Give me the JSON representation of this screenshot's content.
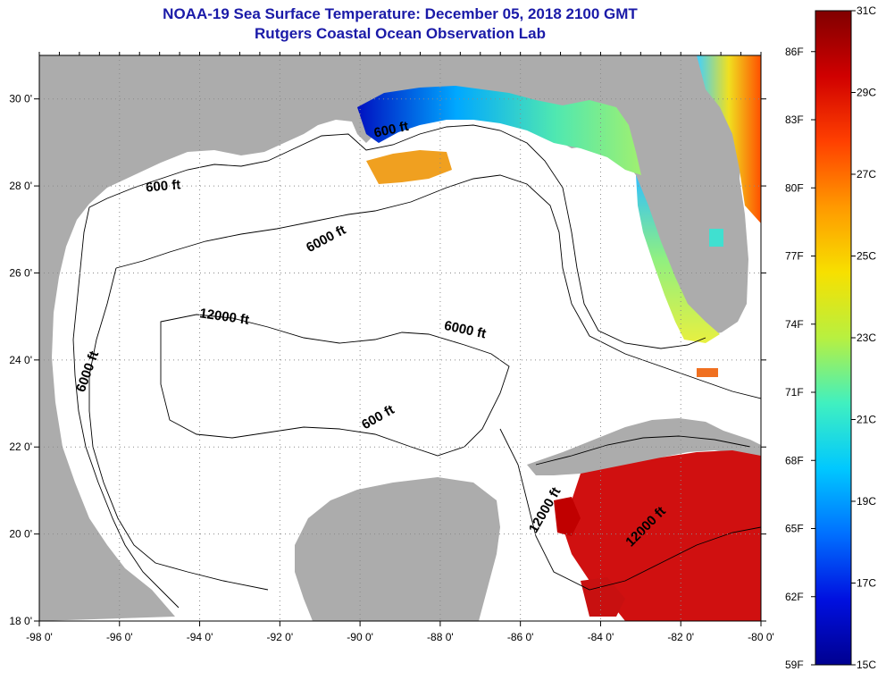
{
  "title_line1": "NOAA-19 Sea Surface Temperature:  December 05, 2018 2100 GMT",
  "title_line2": "Rutgers Coastal Ocean Observation Lab",
  "map": {
    "lon_min": -98,
    "lon_max": -80,
    "lat_min": 18,
    "lat_max": 31,
    "lon_ticks": [
      {
        "value": -98,
        "label": "-98 0'"
      },
      {
        "value": -96,
        "label": "-96 0'"
      },
      {
        "value": -94,
        "label": "-94 0'"
      },
      {
        "value": -92,
        "label": "-92 0'"
      },
      {
        "value": -90,
        "label": "-90 0'"
      },
      {
        "value": -88,
        "label": "-88 0'"
      },
      {
        "value": -86,
        "label": "-86 0'"
      },
      {
        "value": -84,
        "label": "-84 0'"
      },
      {
        "value": -82,
        "label": "-82 0'"
      },
      {
        "value": -80,
        "label": "-80 0'"
      }
    ],
    "lat_ticks": [
      {
        "value": 30,
        "label": "30 0'"
      },
      {
        "value": 28,
        "label": "28 0'"
      },
      {
        "value": 26,
        "label": "26 0'"
      },
      {
        "value": 24,
        "label": "24 0'"
      },
      {
        "value": 22,
        "label": "22 0'"
      },
      {
        "value": 20,
        "label": "20 0'"
      },
      {
        "value": 18,
        "label": "18 0'"
      }
    ],
    "colors": {
      "land": "#acacac",
      "water": "#ffffff",
      "grid": "#8a8a8a",
      "frame": "#000000"
    },
    "contour_labels": [
      {
        "text": "600 ft",
        "lon": -89.2,
        "lat": 29.2,
        "angle": -12
      },
      {
        "text": "600 ft",
        "lon": -94.9,
        "lat": 27.9,
        "angle": -5
      },
      {
        "text": "6000 ft",
        "lon": -90.8,
        "lat": 26.7,
        "angle": -28
      },
      {
        "text": "12000 ft",
        "lon": -93.4,
        "lat": 24.9,
        "angle": 8
      },
      {
        "text": "6000 ft",
        "lon": -87.4,
        "lat": 24.6,
        "angle": 12
      },
      {
        "text": "6000 ft",
        "lon": -96.7,
        "lat": 23.7,
        "angle": -70
      },
      {
        "text": "600 ft",
        "lon": -89.5,
        "lat": 22.6,
        "angle": -30
      },
      {
        "text": "12000 ft",
        "lon": -85.3,
        "lat": 20.5,
        "angle": -60
      },
      {
        "text": "12000 ft",
        "lon": -82.8,
        "lat": 20.1,
        "angle": -45
      }
    ]
  },
  "colorbar": {
    "stops": [
      "#800000",
      "#d00000",
      "#ff4000",
      "#ff9900",
      "#f7e000",
      "#b8f040",
      "#40f0c0",
      "#00c8ff",
      "#0070ff",
      "#0010e0",
      "#000090"
    ],
    "celsius_ticks": [
      {
        "value": 31,
        "label": "31C"
      },
      {
        "value": 29,
        "label": "29C"
      },
      {
        "value": 27,
        "label": "27C"
      },
      {
        "value": 25,
        "label": "25C"
      },
      {
        "value": 23,
        "label": "23C"
      },
      {
        "value": 21,
        "label": "21C"
      },
      {
        "value": 19,
        "label": "19C"
      },
      {
        "value": 17,
        "label": "17C"
      },
      {
        "value": 15,
        "label": "15C"
      }
    ],
    "fahrenheit_ticks": [
      {
        "value": 86,
        "label": "86F"
      },
      {
        "value": 83,
        "label": "83F"
      },
      {
        "value": 80,
        "label": "80F"
      },
      {
        "value": 77,
        "label": "77F"
      },
      {
        "value": 74,
        "label": "74F"
      },
      {
        "value": 71,
        "label": "71F"
      },
      {
        "value": 68,
        "label": "68F"
      },
      {
        "value": 65,
        "label": "65F"
      },
      {
        "value": 62,
        "label": "62F"
      },
      {
        "value": 59,
        "label": "59F"
      }
    ]
  }
}
